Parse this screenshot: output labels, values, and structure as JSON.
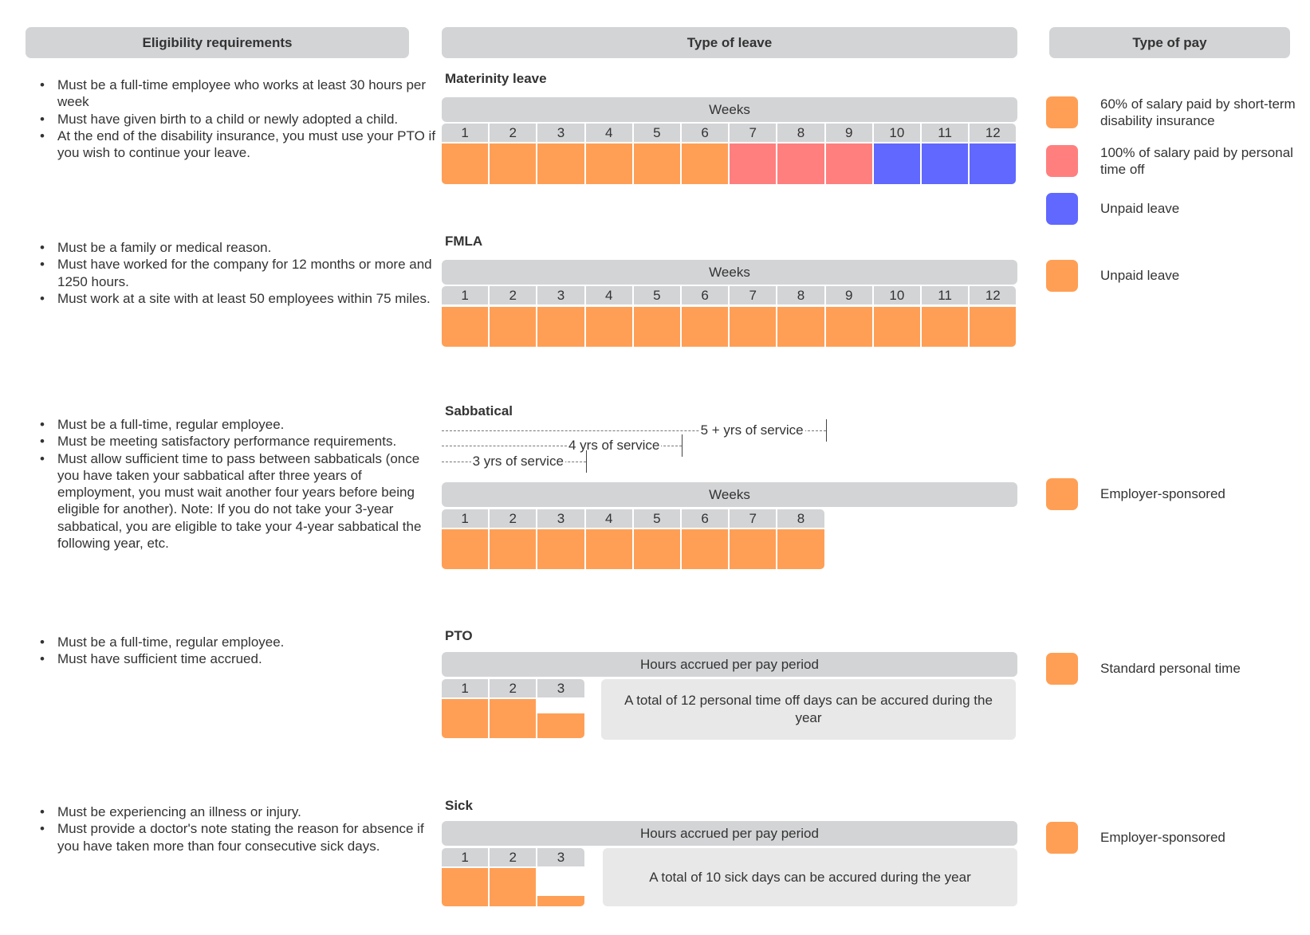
{
  "headers": {
    "eligibility": "Eligibility requirements",
    "leave": "Type of leave",
    "pay": "Type of pay"
  },
  "colors": {
    "orange": "#ff9f55",
    "pink": "#ff7f7f",
    "blue": "#6068ff",
    "gray": "#d3d4d6"
  },
  "sections": [
    {
      "title": "Materinity leave",
      "eligibility": [
        "Must be a full-time employee who works at least 30 hours per week",
        "Must have given birth to a child or newly adopted a child.",
        "At the end of the disability insurance, you must use your PTO if you wish to continue your leave."
      ],
      "bar_header": "Weeks",
      "cells": [
        {
          "label": "1",
          "color": "orange",
          "fill": 1
        },
        {
          "label": "2",
          "color": "orange",
          "fill": 1
        },
        {
          "label": "3",
          "color": "orange",
          "fill": 1
        },
        {
          "label": "4",
          "color": "orange",
          "fill": 1
        },
        {
          "label": "5",
          "color": "orange",
          "fill": 1
        },
        {
          "label": "6",
          "color": "orange",
          "fill": 1
        },
        {
          "label": "7",
          "color": "pink",
          "fill": 1
        },
        {
          "label": "8",
          "color": "pink",
          "fill": 1
        },
        {
          "label": "9",
          "color": "pink",
          "fill": 1
        },
        {
          "label": "10",
          "color": "blue",
          "fill": 1
        },
        {
          "label": "11",
          "color": "blue",
          "fill": 1
        },
        {
          "label": "12",
          "color": "blue",
          "fill": 1
        }
      ],
      "legend": [
        {
          "color": "orange",
          "text": "60% of salary paid by short-term disability insurance"
        },
        {
          "color": "pink",
          "text": "100% of salary paid by personal time off"
        },
        {
          "color": "blue",
          "text": "Unpaid leave"
        }
      ]
    },
    {
      "title": "FMLA",
      "eligibility": [
        "Must be a family or medical reason.",
        "Must have worked for the company for 12 months or more and 1250 hours.",
        "Must work at a site with at least 50 employees within 75 miles."
      ],
      "bar_header": "Weeks",
      "cells": [
        {
          "label": "1",
          "color": "orange",
          "fill": 1
        },
        {
          "label": "2",
          "color": "orange",
          "fill": 1
        },
        {
          "label": "3",
          "color": "orange",
          "fill": 1
        },
        {
          "label": "4",
          "color": "orange",
          "fill": 1
        },
        {
          "label": "5",
          "color": "orange",
          "fill": 1
        },
        {
          "label": "6",
          "color": "orange",
          "fill": 1
        },
        {
          "label": "7",
          "color": "orange",
          "fill": 1
        },
        {
          "label": "8",
          "color": "orange",
          "fill": 1
        },
        {
          "label": "9",
          "color": "orange",
          "fill": 1
        },
        {
          "label": "10",
          "color": "orange",
          "fill": 1
        },
        {
          "label": "11",
          "color": "orange",
          "fill": 1
        },
        {
          "label": "12",
          "color": "orange",
          "fill": 1
        }
      ],
      "legend": [
        {
          "color": "orange",
          "text": "Unpaid leave"
        }
      ]
    },
    {
      "title": "Sabbatical",
      "eligibility": [
        "Must be a full-time, regular employee.",
        "Must be meeting satisfactory performance requirements.",
        "Must allow sufficient time to pass between sabbaticals (once you have taken your sabbatical after three years of employment, you must wait another four years before being eligible for another). Note: If you do not take your 3-year sabbatical, you are eligible to take your 4-year sabbatical the following year, etc."
      ],
      "service_levels": [
        {
          "label": "5 + yrs of service",
          "weeks": 8
        },
        {
          "label": "4 yrs of service",
          "weeks": 5
        },
        {
          "label": "3 yrs of service",
          "weeks": 3
        }
      ],
      "bar_header": "Weeks",
      "cells": [
        {
          "label": "1",
          "color": "orange",
          "fill": 1
        },
        {
          "label": "2",
          "color": "orange",
          "fill": 1
        },
        {
          "label": "3",
          "color": "orange",
          "fill": 1
        },
        {
          "label": "4",
          "color": "orange",
          "fill": 1
        },
        {
          "label": "5",
          "color": "orange",
          "fill": 1
        },
        {
          "label": "6",
          "color": "orange",
          "fill": 1
        },
        {
          "label": "7",
          "color": "orange",
          "fill": 1
        },
        {
          "label": "8",
          "color": "orange",
          "fill": 1
        }
      ],
      "legend": [
        {
          "color": "orange",
          "text": "Employer-sponsored"
        }
      ]
    },
    {
      "title": "PTO",
      "eligibility": [
        "Must be a full-time, regular employee.",
        "Must have sufficient time accrued."
      ],
      "bar_header": "Hours accrued per pay period",
      "cells": [
        {
          "label": "1",
          "color": "orange",
          "fill": 1
        },
        {
          "label": "2",
          "color": "orange",
          "fill": 1
        },
        {
          "label": "3",
          "color": "orange",
          "fill": 0.63
        }
      ],
      "note": "A total of 12 personal time off days can be accured during the year",
      "legend": [
        {
          "color": "orange",
          "text": "Standard personal time"
        }
      ]
    },
    {
      "title": "Sick",
      "eligibility": [
        "Must be experiencing an illness or injury.",
        "Must provide a doctor's note stating the reason for absence if you have taken more than four consecutive sick days."
      ],
      "bar_header": "Hours accrued per pay period",
      "cells": [
        {
          "label": "1",
          "color": "orange",
          "fill": 1
        },
        {
          "label": "2",
          "color": "orange",
          "fill": 1
        },
        {
          "label": "3",
          "color": "orange",
          "fill": 0.28
        }
      ],
      "note": "A total of 10 sick days can be accured during the year",
      "legend": [
        {
          "color": "orange",
          "text": "Employer-sponsored"
        }
      ]
    }
  ]
}
